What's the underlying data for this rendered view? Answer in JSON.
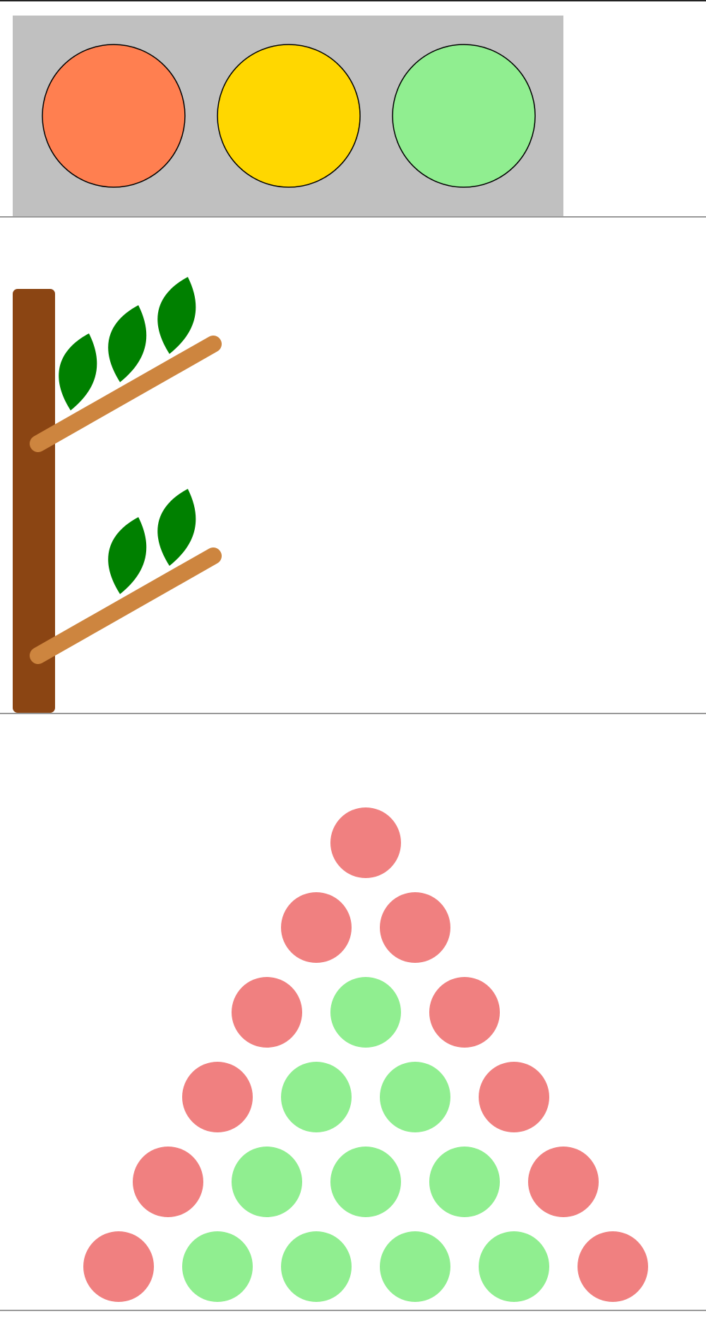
{
  "traffic_light": {
    "housing_color": "#c0c0c0",
    "outline_color": "#000000",
    "lights": [
      {
        "name": "red",
        "color": "#ff7f50"
      },
      {
        "name": "yellow",
        "color": "#ffd700"
      },
      {
        "name": "green",
        "color": "#90ee90"
      }
    ]
  },
  "tree": {
    "trunk_color": "#8b4513",
    "branch_color": "#cd853f",
    "leaf_color": "#008000",
    "branches": [
      {
        "leaf_count": 3
      },
      {
        "leaf_count": 2
      }
    ]
  },
  "pyramid": {
    "edge_color": "#f08080",
    "inner_color": "#90ee90",
    "rows": 6
  },
  "divider_color": "#999999"
}
